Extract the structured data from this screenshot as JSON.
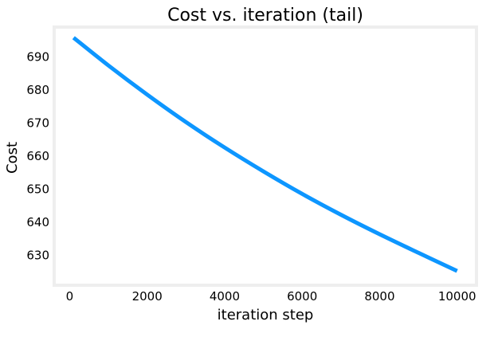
{
  "chart_data": {
    "type": "line",
    "title": "Cost vs. iteration (tail)",
    "xlabel": "iteration step",
    "ylabel": "Cost",
    "xlim": [
      -400,
      10500
    ],
    "ylim": [
      621,
      699
    ],
    "xticks": [
      0,
      2000,
      4000,
      6000,
      8000,
      10000
    ],
    "xtick_labels": [
      "0",
      "2000",
      "4000",
      "6000",
      "8000",
      "10000"
    ],
    "yticks": [
      630,
      640,
      650,
      660,
      670,
      680,
      690
    ],
    "ytick_labels": [
      "630",
      "640",
      "650",
      "660",
      "670",
      "680",
      "690"
    ],
    "grid": false,
    "series": [
      {
        "color": "#0d96ff",
        "x": [
          100,
          1000,
          2000,
          3000,
          4000,
          5000,
          6000,
          7000,
          8000,
          9000,
          10000
        ],
        "y": [
          695.8,
          687.4,
          678.6,
          670.3,
          662.6,
          655.4,
          648.6,
          642.3,
          636.4,
          630.8,
          625.3
        ]
      }
    ],
    "frame_color": "#eeeeee"
  }
}
